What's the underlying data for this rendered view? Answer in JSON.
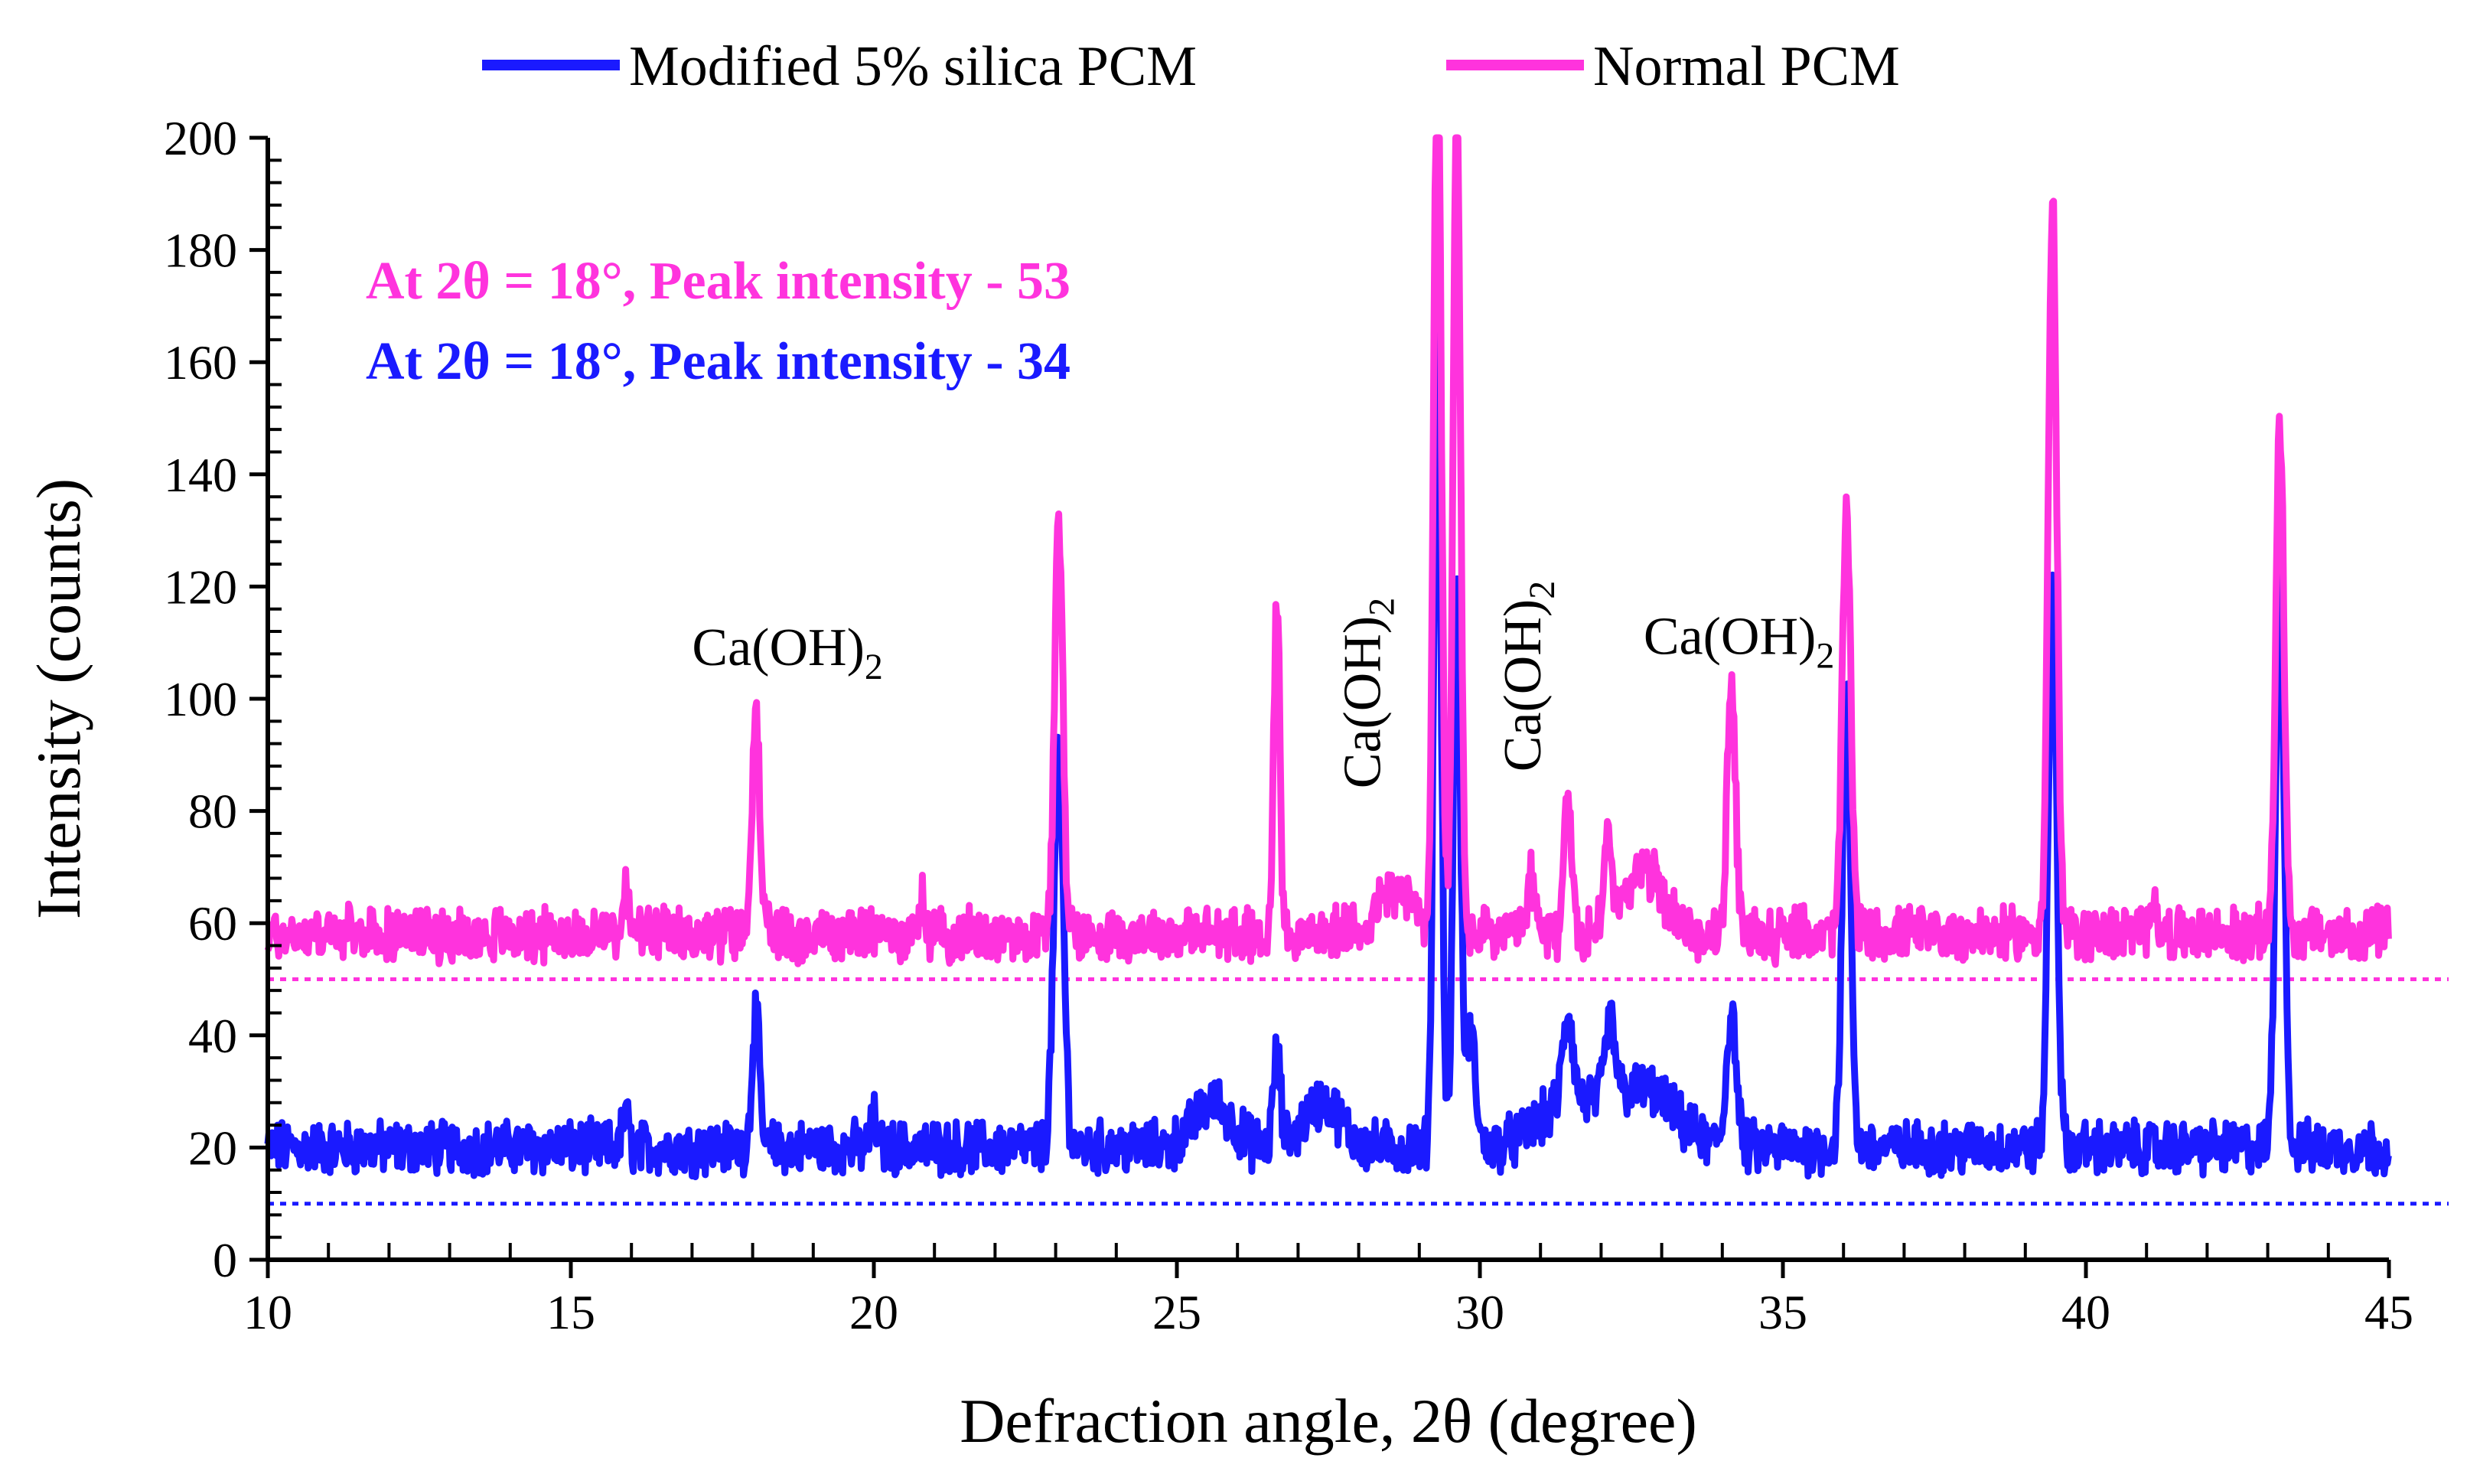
{
  "chart_data": {
    "type": "line",
    "xlabel": "Defraction angle, 2θ (degree)",
    "ylabel": "Intensity (counts)",
    "xlim": [
      10,
      45
    ],
    "ylim": [
      0,
      200
    ],
    "xticks": [
      10,
      15,
      20,
      25,
      30,
      35,
      40,
      45
    ],
    "yticks": [
      0,
      20,
      40,
      60,
      80,
      100,
      120,
      140,
      160,
      180,
      200
    ],
    "grid": false,
    "legend_position": "top-center",
    "series": [
      {
        "name": "Modified 5% silica PCM",
        "color": "#1a1aff",
        "baseline": 20,
        "noise": 4,
        "peaks": [
          {
            "x": 15.9,
            "h": 6,
            "w": 0.05
          },
          {
            "x": 18.05,
            "h": 24,
            "w": 0.06
          },
          {
            "x": 20.0,
            "h": 5,
            "w": 0.05
          },
          {
            "x": 23.05,
            "h": 70,
            "w": 0.08
          },
          {
            "x": 25.6,
            "h": 8,
            "w": 0.3
          },
          {
            "x": 26.65,
            "h": 16,
            "w": 0.06
          },
          {
            "x": 27.4,
            "h": 8,
            "w": 0.3
          },
          {
            "x": 29.3,
            "h": 150,
            "w": 0.06
          },
          {
            "x": 29.62,
            "h": 100,
            "w": 0.06
          },
          {
            "x": 29.85,
            "h": 20,
            "w": 0.08
          },
          {
            "x": 31.45,
            "h": 16,
            "w": 0.08
          },
          {
            "x": 31.5,
            "h": 8,
            "w": 0.5
          },
          {
            "x": 32.15,
            "h": 14,
            "w": 0.08
          },
          {
            "x": 32.7,
            "h": 10,
            "w": 0.5
          },
          {
            "x": 34.15,
            "h": 24,
            "w": 0.08
          },
          {
            "x": 36.05,
            "h": 80,
            "w": 0.07
          },
          {
            "x": 39.45,
            "h": 100,
            "w": 0.07
          },
          {
            "x": 43.2,
            "h": 105,
            "w": 0.07
          }
        ]
      },
      {
        "name": "Normal PCM",
        "color": "#ff33dd",
        "baseline": 58,
        "noise": 4,
        "peaks": [
          {
            "x": 15.9,
            "h": 8,
            "w": 0.05
          },
          {
            "x": 18.05,
            "h": 42,
            "w": 0.06
          },
          {
            "x": 20.8,
            "h": 6,
            "w": 0.05
          },
          {
            "x": 23.05,
            "h": 72,
            "w": 0.07
          },
          {
            "x": 26.65,
            "h": 60,
            "w": 0.05
          },
          {
            "x": 28.6,
            "h": 8,
            "w": 0.3
          },
          {
            "x": 29.3,
            "h": 170,
            "w": 0.06
          },
          {
            "x": 29.62,
            "h": 150,
            "w": 0.06
          },
          {
            "x": 30.85,
            "h": 10,
            "w": 0.06
          },
          {
            "x": 31.45,
            "h": 26,
            "w": 0.06
          },
          {
            "x": 32.1,
            "h": 18,
            "w": 0.06
          },
          {
            "x": 32.7,
            "h": 12,
            "w": 0.3
          },
          {
            "x": 34.15,
            "h": 42,
            "w": 0.07
          },
          {
            "x": 36.05,
            "h": 76,
            "w": 0.07
          },
          {
            "x": 39.45,
            "h": 130,
            "w": 0.07
          },
          {
            "x": 41.1,
            "h": 8,
            "w": 0.05
          },
          {
            "x": 43.2,
            "h": 90,
            "w": 0.07
          }
        ]
      }
    ],
    "reference_lines": [
      {
        "y": 50,
        "color": "#ff33dd",
        "style": "dotted"
      },
      {
        "y": 10,
        "color": "#1a1aff",
        "style": "dotted"
      }
    ],
    "annotations": {
      "pink": {
        "text": "At 2θ = 18°, Peak intensity - 53",
        "color": "#ff33dd"
      },
      "blue": {
        "text": "At 2θ = 18°, Peak intensity - 34",
        "color": "#1a1aff"
      },
      "peak_labels": [
        {
          "main": "Ca(OH)",
          "sub": "2",
          "x": 17.0,
          "y": 106,
          "orientation": "horizontal"
        },
        {
          "main": "Ca(OH)",
          "sub": "2",
          "x": 28.35,
          "y": 84,
          "orientation": "vertical"
        },
        {
          "main": "Ca(OH)",
          "sub": "2",
          "x": 31.0,
          "y": 87,
          "orientation": "vertical"
        },
        {
          "main": "Ca(OH)",
          "sub": "2",
          "x": 32.7,
          "y": 108,
          "orientation": "horizontal"
        }
      ]
    }
  }
}
